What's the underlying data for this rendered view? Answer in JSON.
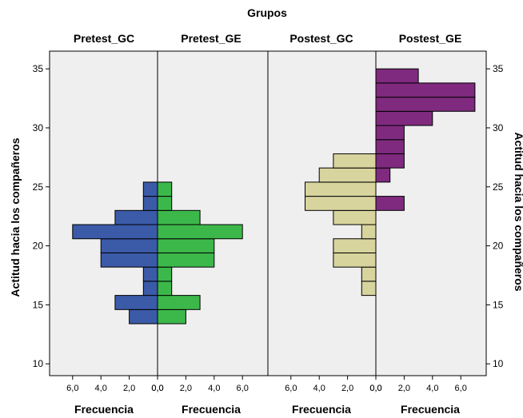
{
  "chart_data": {
    "type": "bar",
    "orientation": "horizontal-back-to-back",
    "title": "Grupos",
    "ylabel": "Actitud hacia los compañeros",
    "xlabel": "Frecuencia",
    "ylim": [
      9,
      36.5
    ],
    "y_ticks": [
      10,
      15,
      20,
      25,
      30,
      35
    ],
    "x_ticks": [
      6,
      4,
      2,
      0
    ],
    "x_tick_labels_left": [
      "6,0",
      "4,0",
      "2,0",
      "0,0"
    ],
    "x_tick_labels_right": [
      "0,0",
      "2,0",
      "4,0",
      "6,0"
    ],
    "xlim": [
      0,
      7.5
    ],
    "grid": false,
    "bin_width": 1.2,
    "panels": [
      {
        "title": "Pretest_GC",
        "side": "left",
        "color": "#3b5aa8",
        "bins": [
          {
            "y": 14.0,
            "count": 2
          },
          {
            "y": 15.2,
            "count": 3
          },
          {
            "y": 16.4,
            "count": 1
          },
          {
            "y": 17.6,
            "count": 1
          },
          {
            "y": 18.8,
            "count": 4
          },
          {
            "y": 20.0,
            "count": 4
          },
          {
            "y": 21.2,
            "count": 6
          },
          {
            "y": 22.4,
            "count": 3
          },
          {
            "y": 23.6,
            "count": 1
          },
          {
            "y": 24.8,
            "count": 1
          }
        ]
      },
      {
        "title": "Pretest_GE",
        "side": "right",
        "color": "#3cb84a",
        "bins": [
          {
            "y": 14.0,
            "count": 2
          },
          {
            "y": 15.2,
            "count": 3
          },
          {
            "y": 16.4,
            "count": 1
          },
          {
            "y": 17.6,
            "count": 1
          },
          {
            "y": 18.8,
            "count": 4
          },
          {
            "y": 20.0,
            "count": 4
          },
          {
            "y": 21.2,
            "count": 6
          },
          {
            "y": 22.4,
            "count": 3
          },
          {
            "y": 23.6,
            "count": 1
          },
          {
            "y": 24.8,
            "count": 1
          }
        ]
      },
      {
        "title": "Postest_GC",
        "side": "left",
        "color": "#d8d49e",
        "bins": [
          {
            "y": 16.4,
            "count": 1
          },
          {
            "y": 17.6,
            "count": 1
          },
          {
            "y": 18.8,
            "count": 3
          },
          {
            "y": 20.0,
            "count": 3
          },
          {
            "y": 21.2,
            "count": 1
          },
          {
            "y": 22.4,
            "count": 3
          },
          {
            "y": 23.6,
            "count": 5
          },
          {
            "y": 24.8,
            "count": 5
          },
          {
            "y": 26.0,
            "count": 4
          },
          {
            "y": 27.2,
            "count": 3
          }
        ]
      },
      {
        "title": "Postest_GE",
        "side": "right",
        "color": "#7f2a7f",
        "bins": [
          {
            "y": 23.6,
            "count": 2
          },
          {
            "y": 26.0,
            "count": 1
          },
          {
            "y": 27.2,
            "count": 2
          },
          {
            "y": 28.4,
            "count": 2
          },
          {
            "y": 29.6,
            "count": 2
          },
          {
            "y": 30.8,
            "count": 4
          },
          {
            "y": 32.0,
            "count": 7
          },
          {
            "y": 33.2,
            "count": 7
          },
          {
            "y": 34.4,
            "count": 3
          }
        ]
      }
    ]
  }
}
